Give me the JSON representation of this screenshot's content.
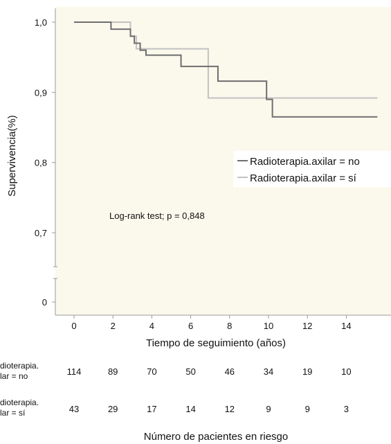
{
  "chart_data": {
    "type": "line",
    "subtype": "kaplan-meier-step",
    "xlabel": "Tiempo de seguimiento (años)",
    "ylabel": "Supervivencia(%)",
    "xlim": [
      -1,
      15.6
    ],
    "ylim": [
      0,
      1.0
    ],
    "axis_break": "between 0 and 0,7",
    "x_ticks": [
      0,
      2,
      4,
      6,
      8,
      10,
      12,
      14
    ],
    "x_tick_labels": [
      "0",
      "2",
      "4",
      "6",
      "8",
      "10",
      "12",
      "14"
    ],
    "y_ticks": [
      0,
      0.7,
      0.8,
      0.9,
      1.0
    ],
    "y_tick_labels": [
      "0",
      "0,7",
      "0,8",
      "0,9",
      "1,0"
    ],
    "grid": false,
    "plot_background": "#fbf8ec",
    "legend": {
      "placement": "right",
      "entries": [
        {
          "label": "Radioterapia.axilar = no",
          "color": "#6e6e6e"
        },
        {
          "label": "Radioterapia.axilar = sí",
          "color": "#c2c2c2"
        }
      ]
    },
    "annotations": [
      {
        "text": "Log-rank test; p = 0,848",
        "x": 6,
        "y": 0.72
      }
    ],
    "series": [
      {
        "name": "Radioterapia.axilar = no",
        "color": "#6e6e6e",
        "steps": [
          {
            "x": 0,
            "y": 1.0
          },
          {
            "x": 1.9,
            "y": 0.99
          },
          {
            "x": 2.9,
            "y": 0.98
          },
          {
            "x": 3.1,
            "y": 0.97
          },
          {
            "x": 3.4,
            "y": 0.96
          },
          {
            "x": 3.7,
            "y": 0.953
          },
          {
            "x": 5.5,
            "y": 0.937
          },
          {
            "x": 7.4,
            "y": 0.916
          },
          {
            "x": 9.9,
            "y": 0.89
          },
          {
            "x": 10.2,
            "y": 0.865
          },
          {
            "x": 15.6,
            "y": 0.865
          }
        ]
      },
      {
        "name": "Radioterapia.axilar = sí",
        "color": "#c2c2c2",
        "steps": [
          {
            "x": 0,
            "y": 1.0
          },
          {
            "x": 2.9,
            "y": 0.98
          },
          {
            "x": 3.2,
            "y": 0.962
          },
          {
            "x": 6.9,
            "y": 0.892
          },
          {
            "x": 15.6,
            "y": 0.892
          }
        ]
      }
    ],
    "risk_table": {
      "title": "Número de pacientes en riesgo",
      "times": [
        0,
        2,
        4,
        6,
        8,
        10,
        12,
        14
      ],
      "rows": [
        {
          "label_lines": [
            "dioterapia.",
            "lar = no"
          ],
          "values": [
            "114",
            "89",
            "70",
            "50",
            "46",
            "34",
            "19",
            "10"
          ]
        },
        {
          "label_lines": [
            "dioterapia.",
            "lar = sí"
          ],
          "values": [
            "43",
            "29",
            "17",
            "14",
            "12",
            "9",
            "9",
            "3"
          ]
        }
      ]
    }
  }
}
